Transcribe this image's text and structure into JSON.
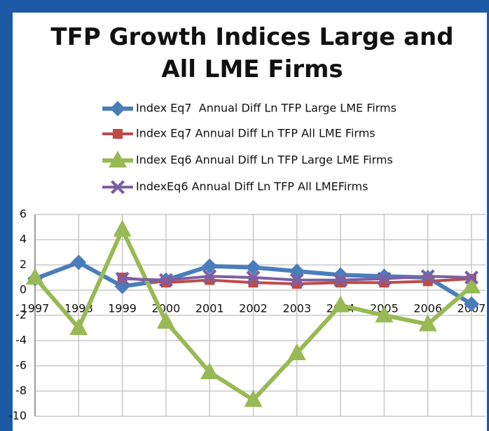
{
  "chart_data": {
    "type": "line",
    "title": "TFP Growth Indices Large and All LME Firms",
    "categories": [
      "1997",
      "1998",
      "1999",
      "2000",
      "2001",
      "2002",
      "2003",
      "2004",
      "2005",
      "2006",
      "2007"
    ],
    "series": [
      {
        "name": "Index Eq7  Annual Diff Ln TFP Large LME Firms",
        "color": "#4a7ebb",
        "marker": "diamond",
        "values": [
          0.9,
          2.2,
          0.3,
          0.8,
          1.9,
          1.8,
          1.5,
          1.2,
          1.1,
          1.0,
          -1.1
        ]
      },
      {
        "name": "Index Eq7 Annual Diff Ln TFP All LME Firms",
        "color": "#be4b48",
        "marker": "square",
        "values": [
          null,
          null,
          1.0,
          0.6,
          0.8,
          0.6,
          0.5,
          0.6,
          0.6,
          0.7,
          0.9
        ]
      },
      {
        "name": "Index Eq6 Annual Diff Ln TFP Large LME Firms",
        "color": "#98b954",
        "marker": "triangle",
        "values": [
          1.0,
          -3.0,
          4.8,
          -2.5,
          -6.5,
          -8.7,
          -5.0,
          -1.2,
          -2.0,
          -2.7,
          0.3
        ]
      },
      {
        "name": "IndexEq6 Annual Diff Ln TFP All LMEFirms",
        "color": "#7d60a0",
        "marker": "x",
        "values": [
          null,
          null,
          0.9,
          0.8,
          1.1,
          1.0,
          0.8,
          0.8,
          0.9,
          1.1,
          1.0
        ]
      }
    ],
    "ylim": [
      -10,
      6
    ],
    "yticks": [
      -10,
      -8,
      -6,
      -4,
      -2,
      0,
      2,
      4,
      6
    ],
    "grid": true
  }
}
